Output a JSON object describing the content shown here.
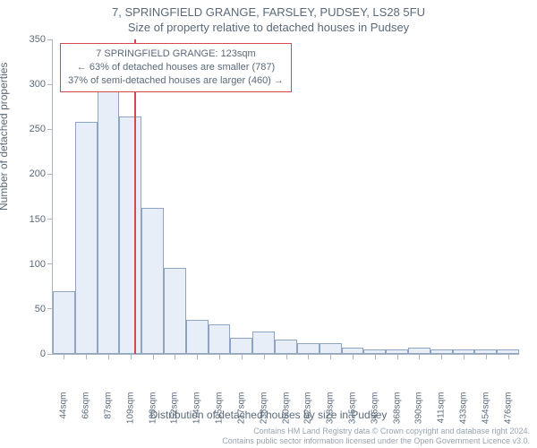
{
  "title_main": "7, SPRINGFIELD GRANGE, FARSLEY, PUDSEY, LS28 5FU",
  "title_sub": "Size of property relative to detached houses in Pudsey",
  "ylabel": "Number of detached properties",
  "xlabel": "Distribution of detached houses by size in Pudsey",
  "footer_line1": "Contains HM Land Registry data © Crown copyright and database right 2024.",
  "footer_line2": "Contains public sector information licensed under the Open Government Licence v3.0.",
  "legend": {
    "line1": "7 SPRINGFIELD GRANGE: 123sqm",
    "line2": "← 63% of detached houses are smaller (787)",
    "line3": "37% of semi-detached houses are larger (460) →",
    "border_color": "#d44a4a",
    "border_width": 1,
    "text_color": "#5a6a7a",
    "font_size": 11
  },
  "chart": {
    "type": "histogram",
    "ylim": [
      0,
      350
    ],
    "ytick_step": 50,
    "background_color": "#ffffff",
    "axis_color": "#aab4bf",
    "bar_fill": "#e8eef7",
    "bar_border": "#8fa3c2",
    "bar_border_width": 1,
    "x_categories": [
      "44sqm",
      "66sqm",
      "87sqm",
      "109sqm",
      "130sqm",
      "152sqm",
      "174sqm",
      "195sqm",
      "217sqm",
      "238sqm",
      "260sqm",
      "282sqm",
      "303sqm",
      "325sqm",
      "346sqm",
      "368sqm",
      "390sqm",
      "411sqm",
      "433sqm",
      "454sqm",
      "476sqm"
    ],
    "values": [
      70,
      258,
      294,
      264,
      163,
      96,
      38,
      33,
      18,
      25,
      16,
      12,
      12,
      7,
      5,
      5,
      7,
      5,
      5,
      5,
      5
    ],
    "reference_line": {
      "bin_index": 3,
      "position_in_bin": 0.66,
      "color": "#d44a4a",
      "width": 2
    }
  }
}
